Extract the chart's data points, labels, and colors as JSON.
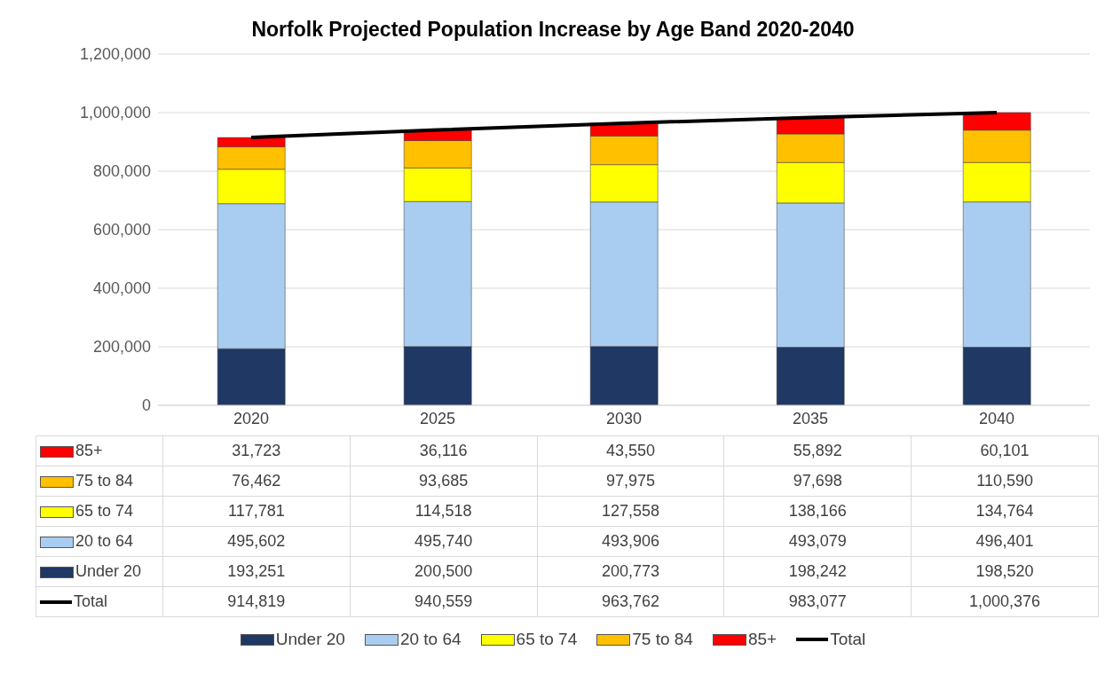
{
  "chart_data": {
    "type": "bar",
    "title": "Norfolk Projected Population Increase by Age Band 2020-2040",
    "categories": [
      "2020",
      "2025",
      "2030",
      "2035",
      "2040"
    ],
    "stacked": true,
    "series": [
      {
        "name": "Under 20",
        "color": "#1f3864",
        "values": [
          193251,
          200500,
          200773,
          198242,
          198520
        ],
        "value_labels": [
          "193,251",
          "200,500",
          "200,773",
          "198,242",
          "198,520"
        ]
      },
      {
        "name": "20 to 64",
        "color": "#a9cdf0",
        "values": [
          495602,
          495740,
          493906,
          493079,
          496401
        ],
        "value_labels": [
          "495,602",
          "495,740",
          "493,906",
          "493,079",
          "496,401"
        ]
      },
      {
        "name": "65 to 74",
        "color": "#ffff00",
        "values": [
          117781,
          114518,
          127558,
          138166,
          134764
        ],
        "value_labels": [
          "117,781",
          "114,518",
          "127,558",
          "138,166",
          "134,764"
        ]
      },
      {
        "name": "75 to 84",
        "color": "#ffc000",
        "values": [
          76462,
          93685,
          97975,
          97698,
          110590
        ],
        "value_labels": [
          "76,462",
          "93,685",
          "97,975",
          "97,698",
          "110,590"
        ]
      },
      {
        "name": "85+",
        "color": "#ff0000",
        "values": [
          31723,
          36116,
          43550,
          55892,
          60101
        ],
        "value_labels": [
          "31,723",
          "36,116",
          "43,550",
          "55,892",
          "60,101"
        ]
      },
      {
        "name": "Total",
        "type": "line",
        "color": "#000000",
        "values": [
          914819,
          940559,
          963762,
          983077,
          1000376
        ],
        "value_labels": [
          "914,819",
          "940,559",
          "963,762",
          "983,077",
          "1,000,376"
        ]
      }
    ],
    "ylim": [
      0,
      1200000
    ],
    "yticks": [
      0,
      {
        "value": 200000,
        "label": "200,000"
      },
      {
        "value": 400000,
        "label": "400,000"
      },
      {
        "value": 600000,
        "label": "600,000"
      },
      {
        "value": 800000,
        "label": "800,000"
      },
      {
        "value": 1000000,
        "label": "1,000,000"
      },
      {
        "value": 1200000,
        "label": "1,200,000"
      }
    ],
    "grid": "y",
    "legend": "bottom"
  }
}
